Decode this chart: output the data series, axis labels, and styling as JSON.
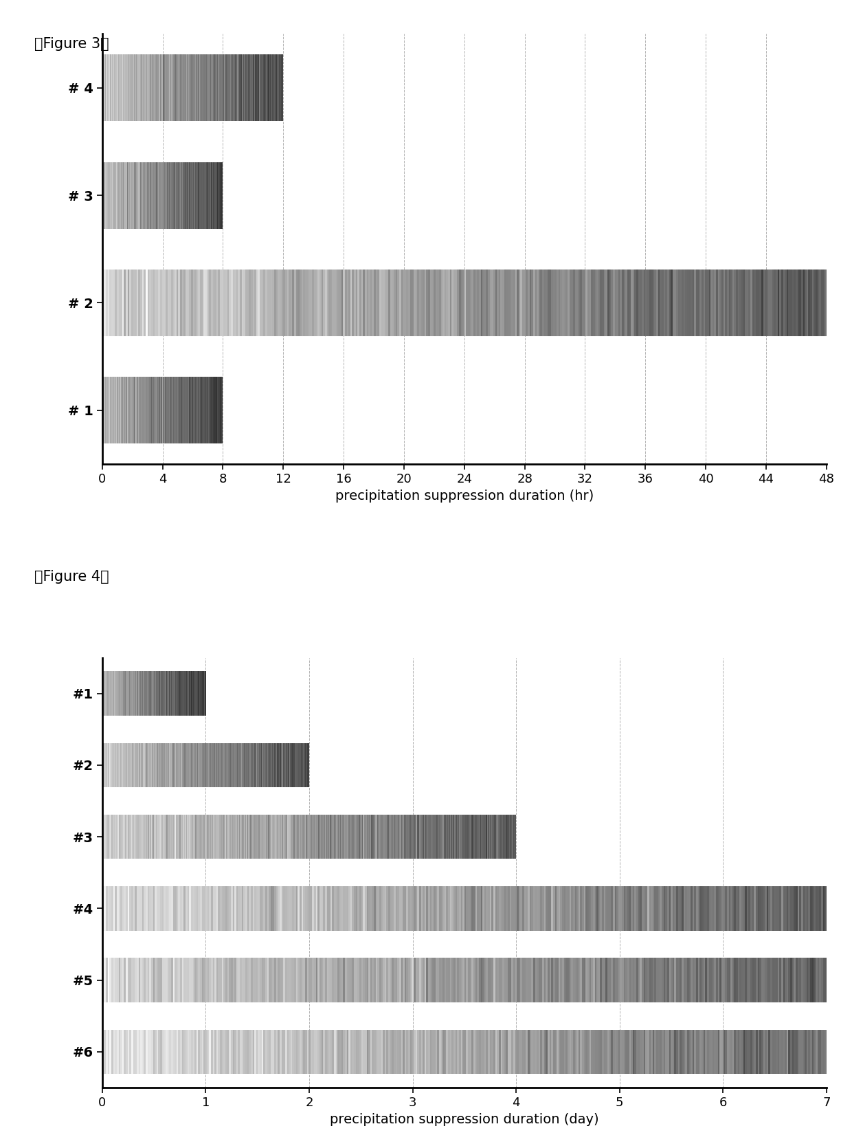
{
  "fig3": {
    "title": "【Figure 3】",
    "categories": [
      "# 4",
      "# 3",
      "# 2",
      "# 1"
    ],
    "values": [
      12,
      8,
      48,
      8
    ],
    "xlabel": "precipitation suppression duration (hr)",
    "xticks": [
      0,
      4,
      8,
      12,
      16,
      20,
      24,
      28,
      32,
      36,
      40,
      44,
      48
    ],
    "xlim": [
      0,
      48
    ],
    "bar_height": 0.62,
    "bar_gradients": [
      [
        [
          0.78,
          0.78,
          0.78
        ],
        [
          0.28,
          0.28,
          0.28
        ]
      ],
      [
        [
          0.75,
          0.75,
          0.75
        ],
        [
          0.28,
          0.28,
          0.28
        ]
      ],
      [
        [
          0.82,
          0.82,
          0.82
        ],
        [
          0.35,
          0.35,
          0.35
        ]
      ],
      [
        [
          0.72,
          0.72,
          0.72
        ],
        [
          0.25,
          0.25,
          0.25
        ]
      ]
    ]
  },
  "fig4": {
    "title": "【Figure 4】",
    "categories": [
      "#1",
      "#2",
      "#3",
      "#4",
      "#5",
      "#6"
    ],
    "values": [
      1,
      2,
      4,
      7,
      7,
      7
    ],
    "xlabel": "precipitation suppression duration (day)",
    "xticks": [
      0,
      1,
      2,
      3,
      4,
      5,
      6,
      7
    ],
    "xlim": [
      0,
      7
    ],
    "bar_height": 0.62,
    "bar_gradients": [
      [
        [
          0.72,
          0.72,
          0.72
        ],
        [
          0.22,
          0.22,
          0.22
        ]
      ],
      [
        [
          0.78,
          0.78,
          0.78
        ],
        [
          0.3,
          0.3,
          0.3
        ]
      ],
      [
        [
          0.82,
          0.82,
          0.82
        ],
        [
          0.35,
          0.35,
          0.35
        ]
      ],
      [
        [
          0.85,
          0.85,
          0.85
        ],
        [
          0.38,
          0.38,
          0.38
        ]
      ],
      [
        [
          0.83,
          0.83,
          0.83
        ],
        [
          0.38,
          0.38,
          0.38
        ]
      ],
      [
        [
          0.88,
          0.88,
          0.88
        ],
        [
          0.42,
          0.42,
          0.42
        ]
      ]
    ]
  },
  "background_color": "#ffffff",
  "title_fontsize": 15,
  "label_fontsize": 14,
  "tick_fontsize": 13,
  "ytick_fontsize": 14,
  "noise_alpha": 0.18
}
